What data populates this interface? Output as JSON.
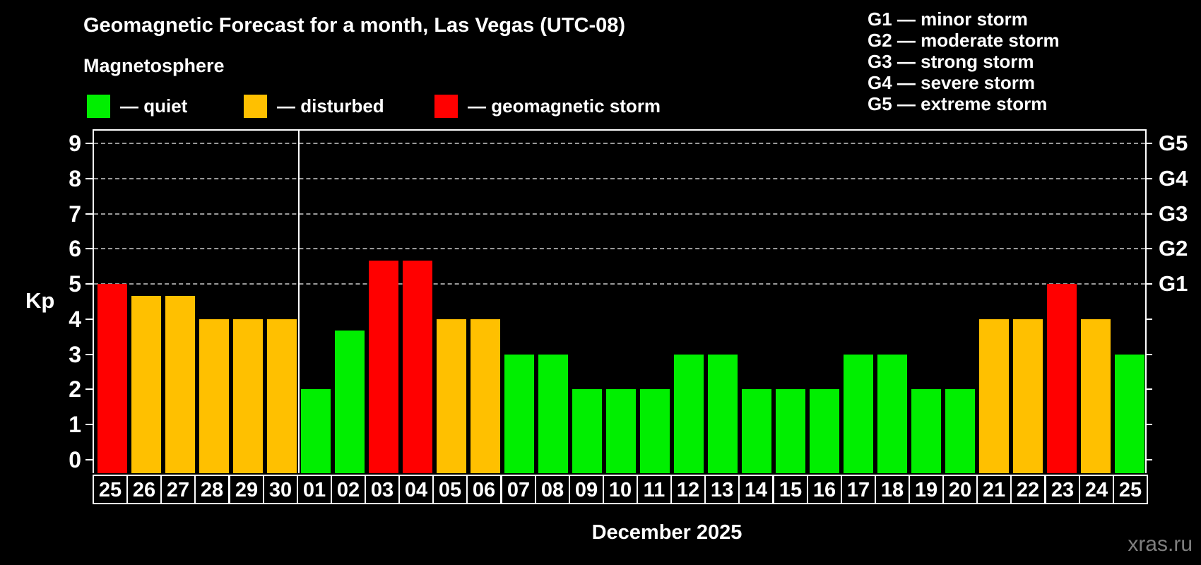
{
  "header": {
    "title": "Geomagnetic Forecast for a month, Las Vegas (UTC-08)",
    "subtitle": "Magnetosphere",
    "watermark": "xras.ru"
  },
  "legend": {
    "items": [
      {
        "name": "quiet",
        "label": "— quiet",
        "color": "#00ef00"
      },
      {
        "name": "disturbed",
        "label": "— disturbed",
        "color": "#ffc000"
      },
      {
        "name": "storm",
        "label": "— geomagnetic storm",
        "color": "#ff0000"
      }
    ]
  },
  "g_legend": {
    "lines": [
      "G1 — minor storm",
      "G2 — moderate storm",
      "G3 — strong storm",
      "G4 — severe storm",
      "G5 — extreme storm"
    ]
  },
  "axes": {
    "y_label": "Kp",
    "y_ticks": [
      0,
      1,
      2,
      3,
      4,
      5,
      6,
      7,
      8,
      9
    ],
    "right_labels": [
      {
        "kp": 5,
        "label": "G1"
      },
      {
        "kp": 6,
        "label": "G2"
      },
      {
        "kp": 7,
        "label": "G3"
      },
      {
        "kp": 8,
        "label": "G4"
      },
      {
        "kp": 9,
        "label": "G5"
      }
    ],
    "x_label": "December 2025"
  },
  "chart_data": {
    "type": "bar",
    "title": "Geomagnetic Forecast for a month, Las Vegas (UTC-08)",
    "xlabel": "December 2025",
    "ylabel": "Kp",
    "ylim": [
      0,
      9
    ],
    "grid": "dashed horizontal lines at Kp 5-9 only",
    "legend_position": "top",
    "month_divider_after_index": 5,
    "categories": [
      "25",
      "26",
      "27",
      "28",
      "29",
      "30",
      "01",
      "02",
      "03",
      "04",
      "05",
      "06",
      "07",
      "08",
      "09",
      "10",
      "11",
      "12",
      "13",
      "14",
      "15",
      "16",
      "17",
      "18",
      "19",
      "20",
      "21",
      "22",
      "23",
      "24",
      "25"
    ],
    "values": [
      5,
      4.67,
      4.67,
      4,
      4,
      4,
      2,
      3.67,
      5.67,
      5.67,
      4,
      4,
      3,
      3,
      2,
      2,
      2,
      3,
      3,
      2,
      2,
      2,
      3,
      3,
      2,
      2,
      4,
      4,
      5,
      4,
      3
    ],
    "statuses": [
      "storm",
      "disturbed",
      "disturbed",
      "disturbed",
      "disturbed",
      "disturbed",
      "quiet",
      "quiet",
      "storm",
      "storm",
      "disturbed",
      "disturbed",
      "quiet",
      "quiet",
      "quiet",
      "quiet",
      "quiet",
      "quiet",
      "quiet",
      "quiet",
      "quiet",
      "quiet",
      "quiet",
      "quiet",
      "quiet",
      "quiet",
      "disturbed",
      "disturbed",
      "storm",
      "disturbed",
      "quiet"
    ],
    "status_colors": {
      "quiet": "#00ef00",
      "disturbed": "#ffc000",
      "storm": "#ff0000"
    }
  }
}
